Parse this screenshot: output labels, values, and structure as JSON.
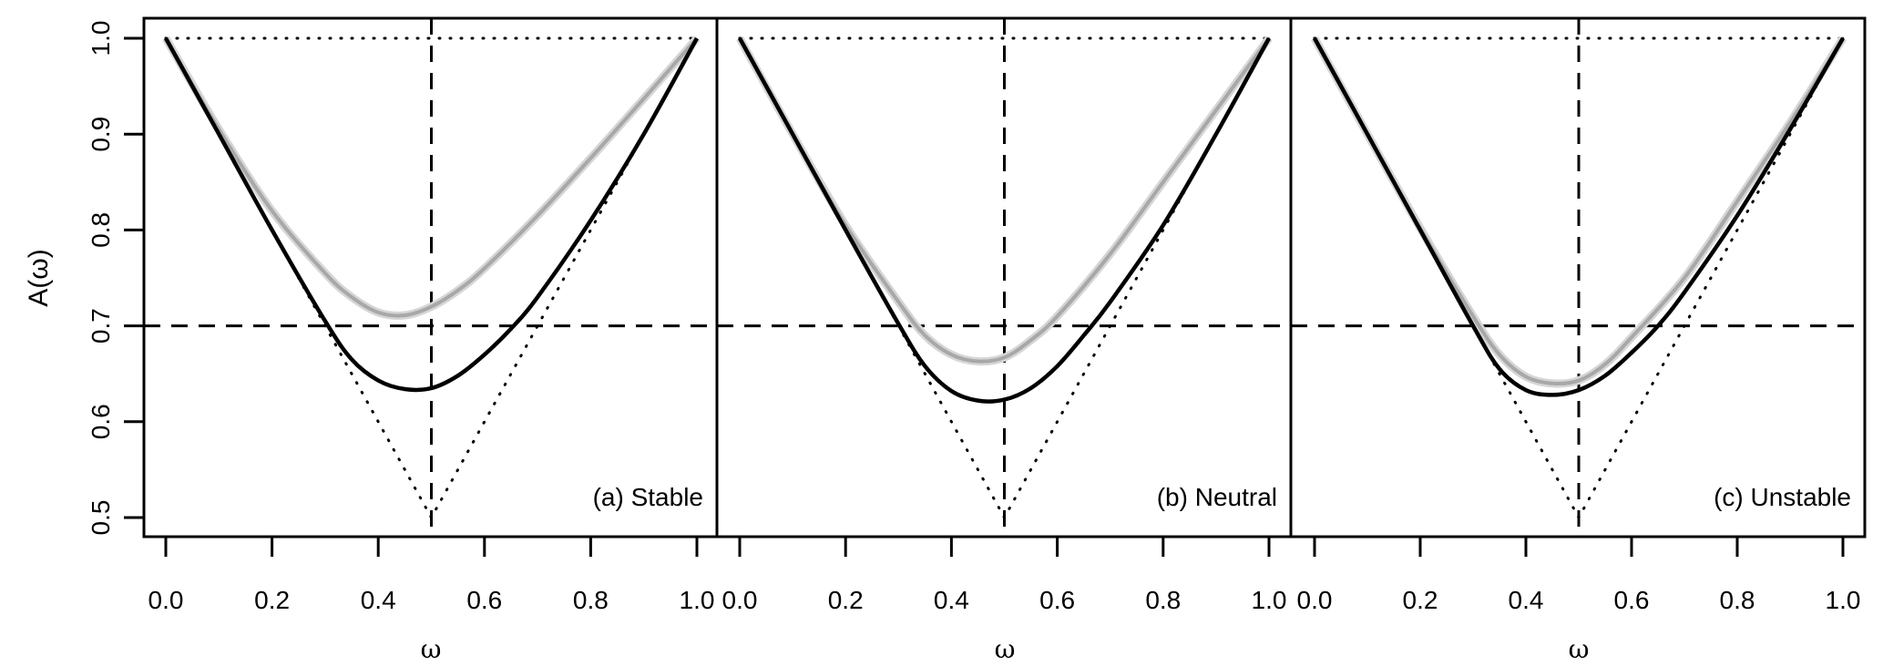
{
  "chart_data": [
    {
      "type": "line",
      "panel_label": "(a) Stable",
      "xlabel": "ω",
      "ylabel": "A(ω)",
      "xlim": [
        0,
        1
      ],
      "ylim": [
        0.5,
        1.0
      ],
      "xticks": [
        "0.0",
        "0.2",
        "0.4",
        "0.6",
        "0.8",
        "1.0"
      ],
      "yticks": [
        "0.5",
        "0.6",
        "0.7",
        "0.8",
        "0.9",
        "1.0"
      ],
      "reference_lines": {
        "horizontal_dashed": 0.7,
        "vertical_dashed": 0.5,
        "upper_bound_dotted": 1.0,
        "lower_bound_dotted": "max(ω, 1-ω)"
      },
      "series": [
        {
          "color": "#000000",
          "x": [
            0,
            0.1,
            0.2,
            0.3,
            0.35,
            0.4,
            0.45,
            0.5,
            0.55,
            0.6,
            0.65,
            0.7,
            0.8,
            0.9,
            1
          ],
          "y": [
            1,
            0.9,
            0.8,
            0.705,
            0.665,
            0.643,
            0.634,
            0.635,
            0.648,
            0.67,
            0.697,
            0.73,
            0.81,
            0.9,
            1
          ]
        },
        {
          "color": "#a8a8a8",
          "x": [
            0,
            0.1,
            0.2,
            0.3,
            0.35,
            0.4,
            0.45,
            0.5,
            0.55,
            0.6,
            0.7,
            0.8,
            0.9,
            1
          ],
          "y": [
            1,
            0.905,
            0.82,
            0.755,
            0.73,
            0.714,
            0.711,
            0.72,
            0.737,
            0.76,
            0.815,
            0.875,
            0.937,
            1
          ]
        }
      ]
    },
    {
      "type": "line",
      "panel_label": "(b) Neutral",
      "xlabel": "ω",
      "xlim": [
        0,
        1
      ],
      "ylim": [
        0.5,
        1.0
      ],
      "xticks": [
        "0.0",
        "0.2",
        "0.4",
        "0.6",
        "0.8",
        "1.0"
      ],
      "reference_lines": {
        "horizontal_dashed": 0.7,
        "vertical_dashed": 0.5,
        "upper_bound_dotted": 1.0,
        "lower_bound_dotted": "max(ω, 1-ω)"
      },
      "series": [
        {
          "color": "#000000",
          "x": [
            0,
            0.1,
            0.2,
            0.3,
            0.35,
            0.4,
            0.45,
            0.5,
            0.55,
            0.6,
            0.65,
            0.7,
            0.8,
            0.9,
            1
          ],
          "y": [
            1,
            0.9,
            0.8,
            0.702,
            0.658,
            0.632,
            0.622,
            0.623,
            0.635,
            0.658,
            0.69,
            0.725,
            0.805,
            0.9,
            1
          ]
        },
        {
          "color": "#a8a8a8",
          "x": [
            0,
            0.1,
            0.2,
            0.3,
            0.35,
            0.4,
            0.45,
            0.5,
            0.55,
            0.6,
            0.7,
            0.8,
            0.9,
            1
          ],
          "y": [
            1,
            0.9,
            0.805,
            0.725,
            0.69,
            0.67,
            0.663,
            0.667,
            0.685,
            0.71,
            0.775,
            0.85,
            0.925,
            1
          ]
        }
      ]
    },
    {
      "type": "line",
      "panel_label": "(c) Unstable",
      "xlabel": "ω",
      "xlim": [
        0,
        1
      ],
      "ylim": [
        0.5,
        1.0
      ],
      "xticks": [
        "0.0",
        "0.2",
        "0.4",
        "0.6",
        "0.8",
        "1.0"
      ],
      "reference_lines": {
        "horizontal_dashed": 0.7,
        "vertical_dashed": 0.5,
        "upper_bound_dotted": 1.0,
        "lower_bound_dotted": "max(ω, 1-ω)"
      },
      "series": [
        {
          "color": "#000000",
          "x": [
            0,
            0.1,
            0.2,
            0.3,
            0.35,
            0.4,
            0.45,
            0.5,
            0.55,
            0.6,
            0.65,
            0.7,
            0.8,
            0.9,
            1
          ],
          "y": [
            1,
            0.9,
            0.8,
            0.7,
            0.655,
            0.633,
            0.628,
            0.633,
            0.648,
            0.672,
            0.7,
            0.735,
            0.815,
            0.905,
            1
          ]
        },
        {
          "color": "#a8a8a8",
          "x": [
            0,
            0.1,
            0.2,
            0.3,
            0.35,
            0.4,
            0.45,
            0.5,
            0.55,
            0.6,
            0.7,
            0.8,
            0.9,
            1
          ],
          "y": [
            1,
            0.9,
            0.802,
            0.71,
            0.67,
            0.647,
            0.64,
            0.643,
            0.66,
            0.688,
            0.75,
            0.83,
            0.912,
            1
          ]
        }
      ]
    }
  ]
}
